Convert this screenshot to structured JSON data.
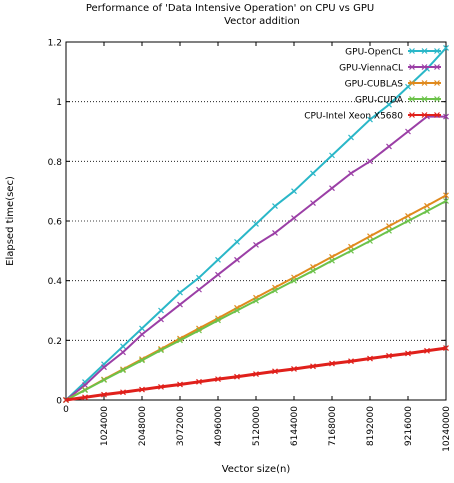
{
  "chart_data": {
    "type": "line",
    "title": "Performance of 'Data Intensive Operation' on CPU vs GPU",
    "subtitle": "Vector addition",
    "xlabel": "Vector size(n)",
    "ylabel": "Elapsed time(sec)",
    "xlim": [
      0,
      10240000
    ],
    "ylim": [
      0,
      1.2
    ],
    "grid": "y-dotted",
    "legend_position": "top-right",
    "x_ticks": [
      0,
      1024000,
      2048000,
      3072000,
      4096000,
      5120000,
      6144000,
      7168000,
      8192000,
      9216000,
      10240000
    ],
    "x_tick_labels": [
      "0",
      "1024000",
      "2048000",
      "3072000",
      "4096000",
      "5120000",
      "6144000",
      "7168000",
      "8192000",
      "9216000",
      "10240000"
    ],
    "y_ticks": [
      0,
      0.2,
      0.4,
      0.6,
      0.8,
      1,
      1.2
    ],
    "y_tick_labels": [
      "0",
      "0.2",
      "0.4",
      "0.6",
      "0.8",
      "1",
      "1.2"
    ],
    "series": [
      {
        "name": "GPU-OpenCL",
        "color": "#2ab7c8",
        "marker": "x",
        "x": [
          0,
          512000,
          1024000,
          1536000,
          2048000,
          2560000,
          3072000,
          3584000,
          4096000,
          4608000,
          5120000,
          5632000,
          6144000,
          6656000,
          7168000,
          7680000,
          8192000,
          8704000,
          9216000,
          9728000,
          10240000
        ],
        "y": [
          0,
          0.06,
          0.12,
          0.18,
          0.24,
          0.3,
          0.36,
          0.41,
          0.47,
          0.53,
          0.59,
          0.65,
          0.7,
          0.76,
          0.82,
          0.88,
          0.94,
          0.99,
          1.05,
          1.11,
          1.18
        ]
      },
      {
        "name": "GPU-ViennaCL",
        "color": "#9b3fa6",
        "marker": "x",
        "x": [
          0,
          512000,
          1024000,
          1536000,
          2048000,
          2560000,
          3072000,
          3584000,
          4096000,
          4608000,
          5120000,
          5632000,
          6144000,
          6656000,
          7168000,
          7680000,
          8192000,
          8704000,
          9216000,
          9728000,
          10240000
        ],
        "y": [
          0,
          0.05,
          0.11,
          0.16,
          0.22,
          0.27,
          0.32,
          0.37,
          0.42,
          0.47,
          0.52,
          0.56,
          0.61,
          0.66,
          0.71,
          0.76,
          0.8,
          0.85,
          0.9,
          0.95,
          0.95
        ]
      },
      {
        "name": "GPU-CUBLAS",
        "color": "#e08a1e",
        "marker": "x",
        "x": [
          0,
          512000,
          1024000,
          1536000,
          2048000,
          2560000,
          3072000,
          3584000,
          4096000,
          4608000,
          5120000,
          5632000,
          6144000,
          6656000,
          7168000,
          7680000,
          8192000,
          8704000,
          9216000,
          9728000,
          10240000
        ],
        "y": [
          0,
          0.034,
          0.069,
          0.103,
          0.137,
          0.171,
          0.206,
          0.24,
          0.274,
          0.309,
          0.343,
          0.377,
          0.411,
          0.446,
          0.48,
          0.514,
          0.549,
          0.583,
          0.617,
          0.651,
          0.686
        ]
      },
      {
        "name": "GPU-CUDA",
        "color": "#6cc24a",
        "marker": "x",
        "x": [
          0,
          512000,
          1024000,
          1536000,
          2048000,
          2560000,
          3072000,
          3584000,
          4096000,
          4608000,
          5120000,
          5632000,
          6144000,
          6656000,
          7168000,
          7680000,
          8192000,
          8704000,
          9216000,
          9728000,
          10240000
        ],
        "y": [
          0,
          0.033,
          0.067,
          0.1,
          0.133,
          0.167,
          0.2,
          0.233,
          0.267,
          0.3,
          0.333,
          0.367,
          0.4,
          0.433,
          0.467,
          0.5,
          0.533,
          0.567,
          0.6,
          0.633,
          0.667
        ]
      },
      {
        "name": "CPU-Intel Xeon X5680",
        "color": "#e0201b",
        "marker": "x",
        "x": [
          0,
          512000,
          1024000,
          1536000,
          2048000,
          2560000,
          3072000,
          3584000,
          4096000,
          4608000,
          5120000,
          5632000,
          6144000,
          6656000,
          7168000,
          7680000,
          8192000,
          8704000,
          9216000,
          9728000,
          10240000
        ],
        "y": [
          0,
          0.009,
          0.018,
          0.026,
          0.035,
          0.044,
          0.052,
          0.061,
          0.07,
          0.078,
          0.087,
          0.096,
          0.104,
          0.113,
          0.122,
          0.13,
          0.139,
          0.148,
          0.156,
          0.165,
          0.174
        ]
      }
    ]
  }
}
